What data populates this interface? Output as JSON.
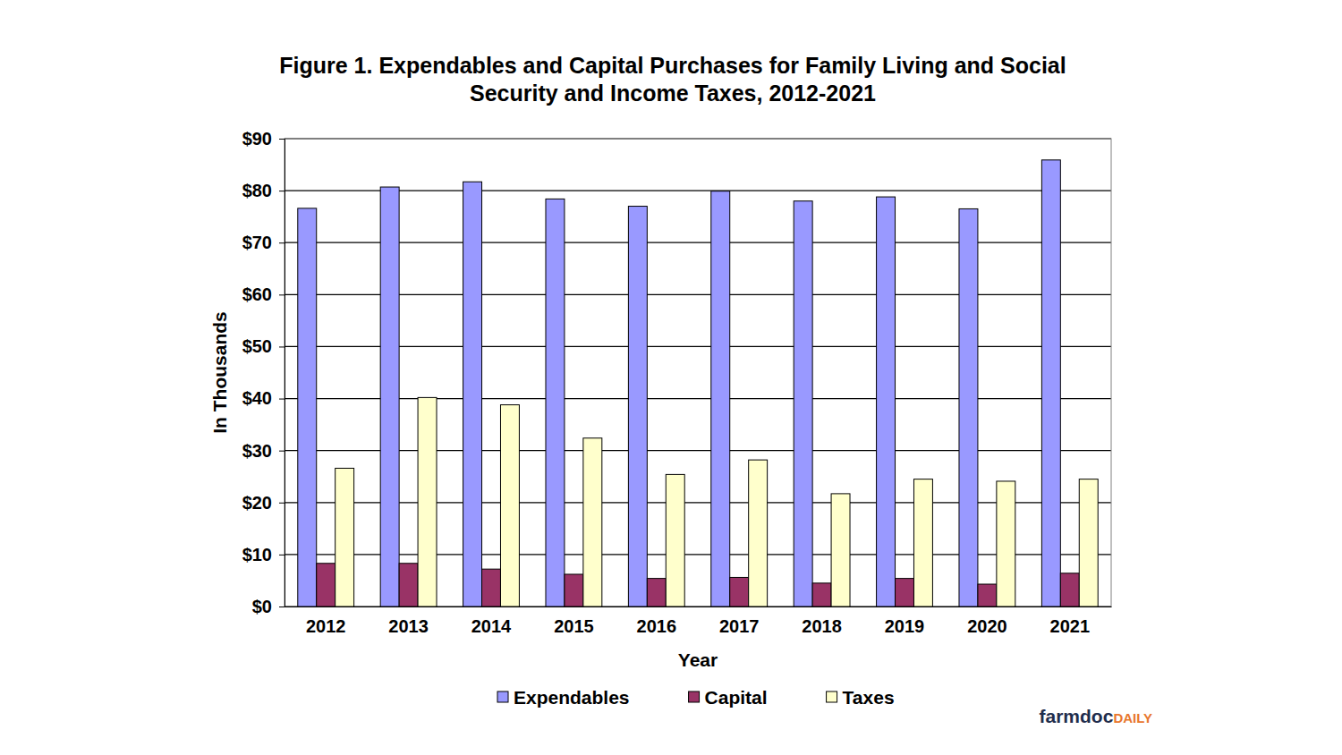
{
  "chart_data": {
    "type": "bar",
    "title": "Figure 1. Expendables and Capital Purchases for Family Living and Social Security and Income Taxes, 2012-2021",
    "x_label": "Year",
    "y_label": "In Thousands",
    "source": "farmdocDAILY",
    "categories": [
      "2012",
      "2013",
      "2014",
      "2015",
      "2016",
      "2017",
      "2018",
      "2019",
      "2020",
      "2021"
    ],
    "series": [
      {
        "name": "Expendables",
        "color": "#9999ff",
        "values": [
          76.6,
          80.7,
          81.7,
          78.4,
          77.0,
          79.9,
          78.0,
          78.8,
          76.5,
          85.9
        ]
      },
      {
        "name": "Capital",
        "color": "#993366",
        "values": [
          8.3,
          8.3,
          7.2,
          6.2,
          5.4,
          5.6,
          4.5,
          5.4,
          4.3,
          6.4
        ]
      },
      {
        "name": "Taxes",
        "color": "#ffffcc",
        "values": [
          26.6,
          40.2,
          38.8,
          32.4,
          25.4,
          28.2,
          21.7,
          24.5,
          24.1,
          24.5
        ]
      }
    ],
    "ylim": [
      0,
      90
    ],
    "yticks": [
      {
        "value": 0,
        "label": "$0"
      },
      {
        "value": 10,
        "label": "$10"
      },
      {
        "value": 20,
        "label": "$20"
      },
      {
        "value": 30,
        "label": "$30"
      },
      {
        "value": 40,
        "label": "$40"
      },
      {
        "value": 50,
        "label": "$50"
      },
      {
        "value": 60,
        "label": "$60"
      },
      {
        "value": 70,
        "label": "$70"
      },
      {
        "value": 80,
        "label": "$80"
      },
      {
        "value": 90,
        "label": "$90"
      }
    ],
    "grid": true,
    "legend": "bottom"
  }
}
